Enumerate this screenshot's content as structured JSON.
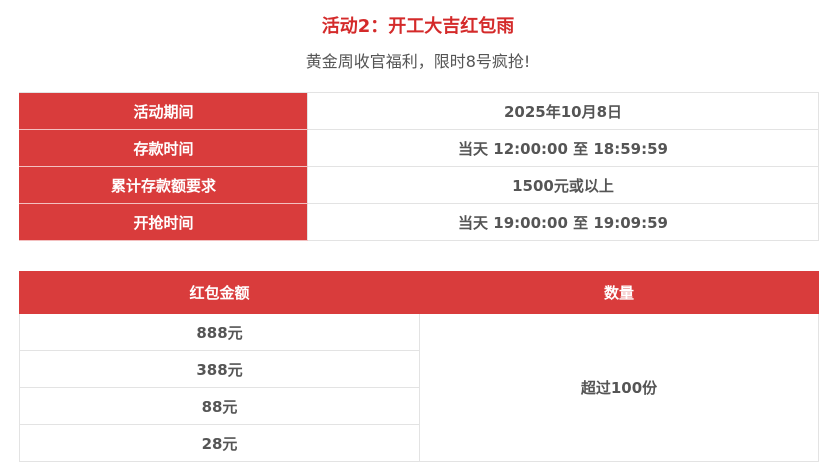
{
  "title": "活动2：开工大吉红包雨",
  "subtitle": "黄金周收官福利，限时8号疯抢!",
  "info": [
    {
      "label": "活动期间",
      "value": "2025年10月8日"
    },
    {
      "label": "存款时间",
      "value": "当天 12:00:00 至 18:59:59"
    },
    {
      "label": "累计存款额要求",
      "value": "1500元或以上"
    },
    {
      "label": "开抢时间",
      "value": "当天 19:00:00 至 19:09:59"
    }
  ],
  "prize": {
    "headers": [
      "红包金额",
      "数量"
    ],
    "amounts": [
      "888元",
      "388元",
      "88元",
      "28元"
    ],
    "quantity": "超过100份"
  },
  "colors": {
    "accent": "#d93c3c",
    "title": "#d42a2a"
  }
}
